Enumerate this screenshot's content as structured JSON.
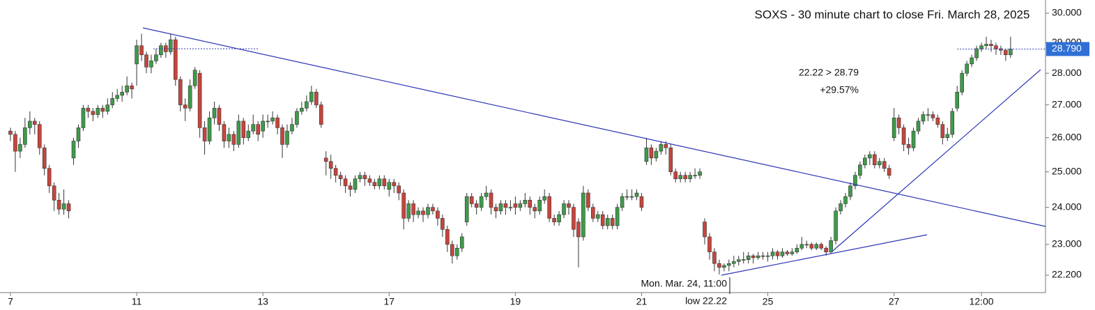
{
  "chart_data": {
    "type": "candlestick",
    "title": "SOXS - 30 minute chart to close Fri. March 28, 2025",
    "annotations": [
      "22.22 > 28.79",
      "+29.57%",
      "Mon. Mar. 24, 11:00",
      "low 22.22"
    ],
    "log_scale": true,
    "up_color": "#3f9b4a",
    "down_color": "#c6453d",
    "ylim": [
      21.76,
      30.46
    ],
    "yticks": [
      {
        "value": 22.2,
        "label": "22.200"
      },
      {
        "value": 23,
        "label": "23.000"
      },
      {
        "value": 24,
        "label": "24.000"
      },
      {
        "value": 25,
        "label": "25.000"
      },
      {
        "value": 26,
        "label": "26.000"
      },
      {
        "value": 27,
        "label": "27.000"
      },
      {
        "value": 28,
        "label": "28.000"
      },
      {
        "value": 29,
        "label": "29.000"
      },
      {
        "value": 30,
        "label": "30.000"
      }
    ],
    "xlim": [
      -2.15,
      213.2
    ],
    "xticks": [
      {
        "value": 0,
        "label": "7"
      },
      {
        "value": 26,
        "label": "11"
      },
      {
        "value": 52,
        "label": "13"
      },
      {
        "value": 78,
        "label": "17"
      },
      {
        "value": 104,
        "label": "19"
      },
      {
        "value": 130,
        "label": "21"
      },
      {
        "value": 156,
        "label": "25"
      },
      {
        "value": 182,
        "label": "27"
      },
      {
        "value": 200,
        "label": "12:00"
      }
    ],
    "last_price": {
      "value": 28.79,
      "label": "28.790"
    },
    "ohlc": [
      [
        26.2,
        26.3,
        25.9,
        26.1
      ],
      [
        26.1,
        26.2,
        25.0,
        25.6
      ],
      [
        25.6,
        26.0,
        25.4,
        25.8
      ],
      [
        25.8,
        26.6,
        25.7,
        26.3
      ],
      [
        26.3,
        26.8,
        26.1,
        26.5
      ],
      [
        26.5,
        26.6,
        26.1,
        26.4
      ],
      [
        26.4,
        26.5,
        25.5,
        25.7
      ],
      [
        25.7,
        25.8,
        24.9,
        25.1
      ],
      [
        25.1,
        25.2,
        24.4,
        24.6
      ],
      [
        24.6,
        24.7,
        23.9,
        24.2
      ],
      [
        24.2,
        24.4,
        23.8,
        23.95
      ],
      [
        23.95,
        24.5,
        23.8,
        24.1
      ],
      [
        24.1,
        24.2,
        23.7,
        23.9
      ],
      [
        25.4,
        26.0,
        25.2,
        25.9
      ],
      [
        25.9,
        26.4,
        25.7,
        26.3
      ],
      [
        26.3,
        27.0,
        26.2,
        26.9
      ],
      [
        26.9,
        27.0,
        26.6,
        26.8
      ],
      [
        26.8,
        26.9,
        26.5,
        26.7
      ],
      [
        26.7,
        27.0,
        26.6,
        26.9
      ],
      [
        26.9,
        27.0,
        26.6,
        26.8
      ],
      [
        26.8,
        27.2,
        26.7,
        27.0
      ],
      [
        27.0,
        27.4,
        26.9,
        27.2
      ],
      [
        27.2,
        27.5,
        27.1,
        27.3
      ],
      [
        27.3,
        27.6,
        27.1,
        27.4
      ],
      [
        27.4,
        27.9,
        27.3,
        27.6
      ],
      [
        27.6,
        27.7,
        27.2,
        27.5
      ],
      [
        28.3,
        29.1,
        27.6,
        28.9
      ],
      [
        28.9,
        29.3,
        28.4,
        28.6
      ],
      [
        28.6,
        28.7,
        28.0,
        28.2
      ],
      [
        28.2,
        28.6,
        28.0,
        28.4
      ],
      [
        28.4,
        28.8,
        28.3,
        28.6
      ],
      [
        28.6,
        29.0,
        28.5,
        28.9
      ],
      [
        28.9,
        29.0,
        28.5,
        28.7
      ],
      [
        28.7,
        29.3,
        28.6,
        29.1
      ],
      [
        29.1,
        29.2,
        27.6,
        27.8
      ],
      [
        27.8,
        27.9,
        26.8,
        27.0
      ],
      [
        27.0,
        27.2,
        26.5,
        26.9
      ],
      [
        26.9,
        27.8,
        26.8,
        27.6
      ],
      [
        27.6,
        28.2,
        27.5,
        28.1
      ],
      [
        28.0,
        28.1,
        26.0,
        26.3
      ],
      [
        26.3,
        26.5,
        25.5,
        25.9
      ],
      [
        25.9,
        26.8,
        25.8,
        26.6
      ],
      [
        26.6,
        27.1,
        26.4,
        26.9
      ],
      [
        26.9,
        27.0,
        26.2,
        26.4
      ],
      [
        26.4,
        26.5,
        25.7,
        25.9
      ],
      [
        25.9,
        26.3,
        25.7,
        26.1
      ],
      [
        26.1,
        26.2,
        25.6,
        25.8
      ],
      [
        25.8,
        26.7,
        25.7,
        26.5
      ],
      [
        26.5,
        26.6,
        25.8,
        26.0
      ],
      [
        26.0,
        26.4,
        25.9,
        26.2
      ],
      [
        26.2,
        26.7,
        26.1,
        26.4
      ],
      [
        26.4,
        26.5,
        25.9,
        26.1
      ],
      [
        26.2,
        26.7,
        26.0,
        26.5
      ],
      [
        26.5,
        26.7,
        26.3,
        26.5
      ],
      [
        26.5,
        26.8,
        26.4,
        26.6
      ],
      [
        26.6,
        26.7,
        26.1,
        26.3
      ],
      [
        26.3,
        26.4,
        25.4,
        25.8
      ],
      [
        25.8,
        26.4,
        25.7,
        26.2
      ],
      [
        26.2,
        26.6,
        26.1,
        26.4
      ],
      [
        26.4,
        26.9,
        26.3,
        26.8
      ],
      [
        26.8,
        27.1,
        26.7,
        26.9
      ],
      [
        26.9,
        27.3,
        26.8,
        27.1
      ],
      [
        27.1,
        27.6,
        27.0,
        27.4
      ],
      [
        27.4,
        27.5,
        26.9,
        27.0
      ],
      [
        27.0,
        27.1,
        26.3,
        26.4
      ],
      [
        25.4,
        25.6,
        24.9,
        25.3
      ],
      [
        25.3,
        25.5,
        24.8,
        25.1
      ],
      [
        25.1,
        25.2,
        24.7,
        24.9
      ],
      [
        24.9,
        25.0,
        24.6,
        24.8
      ],
      [
        24.8,
        24.9,
        24.4,
        24.6
      ],
      [
        24.6,
        24.7,
        24.3,
        24.5
      ],
      [
        24.5,
        24.9,
        24.4,
        24.8
      ],
      [
        24.8,
        25.0,
        24.7,
        24.9
      ],
      [
        24.9,
        25.0,
        24.6,
        24.8
      ],
      [
        24.8,
        24.9,
        24.6,
        24.7
      ],
      [
        24.7,
        24.8,
        24.5,
        24.6
      ],
      [
        24.6,
        24.9,
        24.5,
        24.8
      ],
      [
        24.8,
        24.9,
        24.5,
        24.6
      ],
      [
        24.5,
        24.8,
        24.3,
        24.7
      ],
      [
        24.7,
        24.8,
        24.4,
        24.6
      ],
      [
        24.6,
        24.7,
        24.2,
        24.4
      ],
      [
        24.4,
        24.5,
        23.4,
        23.7
      ],
      [
        23.7,
        24.2,
        23.6,
        24.1
      ],
      [
        24.1,
        24.2,
        23.6,
        23.8
      ],
      [
        23.8,
        24.0,
        23.7,
        23.9
      ],
      [
        23.9,
        24.0,
        23.6,
        23.8
      ],
      [
        23.8,
        24.1,
        23.7,
        24.0
      ],
      [
        24.0,
        24.1,
        23.8,
        23.9
      ],
      [
        23.9,
        24.0,
        23.5,
        23.7
      ],
      [
        23.7,
        23.8,
        23.2,
        23.4
      ],
      [
        23.4,
        23.5,
        22.8,
        23.0
      ],
      [
        23.0,
        23.1,
        22.5,
        22.7
      ],
      [
        22.7,
        23.0,
        22.6,
        22.9
      ],
      [
        22.9,
        23.3,
        22.8,
        23.2
      ],
      [
        23.6,
        24.4,
        23.5,
        24.3
      ],
      [
        24.3,
        24.4,
        24.0,
        24.1
      ],
      [
        24.1,
        24.2,
        23.8,
        24.0
      ],
      [
        24.0,
        24.4,
        23.9,
        24.3
      ],
      [
        24.3,
        24.6,
        24.2,
        24.4
      ],
      [
        24.4,
        24.5,
        23.8,
        24.0
      ],
      [
        24.0,
        24.1,
        23.7,
        23.9
      ],
      [
        23.9,
        24.2,
        23.8,
        24.1
      ],
      [
        24.1,
        24.2,
        23.8,
        24.0
      ],
      [
        24.0,
        24.2,
        23.9,
        24.0
      ],
      [
        24.1,
        24.3,
        23.8,
        24.0
      ],
      [
        24.0,
        24.2,
        23.9,
        24.1
      ],
      [
        24.1,
        24.4,
        24.0,
        24.2
      ],
      [
        24.2,
        24.3,
        23.8,
        24.0
      ],
      [
        24.0,
        24.1,
        23.7,
        23.9
      ],
      [
        23.9,
        24.3,
        23.8,
        24.2
      ],
      [
        24.2,
        24.5,
        24.1,
        24.3
      ],
      [
        24.3,
        24.4,
        23.6,
        23.7
      ],
      [
        23.7,
        23.8,
        23.5,
        23.6
      ],
      [
        23.6,
        23.9,
        23.5,
        23.8
      ],
      [
        23.8,
        24.2,
        23.7,
        24.1
      ],
      [
        24.1,
        24.2,
        23.8,
        24.0
      ],
      [
        24.0,
        24.1,
        23.2,
        23.4
      ],
      [
        23.6,
        23.7,
        22.4,
        23.2
      ],
      [
        23.2,
        24.6,
        23.1,
        24.4
      ],
      [
        24.4,
        24.5,
        23.9,
        24.0
      ],
      [
        24.0,
        24.1,
        23.6,
        23.7
      ],
      [
        23.7,
        23.9,
        23.6,
        23.8
      ],
      [
        23.8,
        23.9,
        23.4,
        23.5
      ],
      [
        23.5,
        23.8,
        23.4,
        23.7
      ],
      [
        23.7,
        23.8,
        23.4,
        23.5
      ],
      [
        23.5,
        24.1,
        23.4,
        24.0
      ],
      [
        24.0,
        24.4,
        23.9,
        24.3
      ],
      [
        24.3,
        24.5,
        24.2,
        24.3
      ],
      [
        24.3,
        24.5,
        24.2,
        24.3
      ],
      [
        24.3,
        24.5,
        24.2,
        24.4
      ],
      [
        24.3,
        24.4,
        23.9,
        24.0
      ],
      [
        25.3,
        26.0,
        25.2,
        25.7
      ],
      [
        25.7,
        25.8,
        25.2,
        25.4
      ],
      [
        25.4,
        25.7,
        25.3,
        25.6
      ],
      [
        25.6,
        25.9,
        25.5,
        25.8
      ],
      [
        25.8,
        25.9,
        25.5,
        25.7
      ],
      [
        25.7,
        25.8,
        24.9,
        25.0
      ],
      [
        25.0,
        25.1,
        24.7,
        24.8
      ],
      [
        24.8,
        25.0,
        24.7,
        24.9
      ],
      [
        24.9,
        25.0,
        24.7,
        24.8
      ],
      [
        24.8,
        25.0,
        24.7,
        24.9
      ],
      [
        24.9,
        25.1,
        24.8,
        24.9
      ],
      [
        24.9,
        25.1,
        24.8,
        25.0
      ],
      [
        23.6,
        23.7,
        23.0,
        23.2
      ],
      [
        23.2,
        23.3,
        22.6,
        22.8
      ],
      [
        22.8,
        22.9,
        22.3,
        22.5
      ],
      [
        22.5,
        22.6,
        22.22,
        22.4
      ],
      [
        22.4,
        22.5,
        22.3,
        22.45
      ],
      [
        22.45,
        22.6,
        22.3,
        22.5
      ],
      [
        22.5,
        22.7,
        22.4,
        22.55
      ],
      [
        22.55,
        22.7,
        22.45,
        22.6
      ],
      [
        22.6,
        22.8,
        22.5,
        22.6
      ],
      [
        22.6,
        22.8,
        22.5,
        22.7
      ],
      [
        22.7,
        22.75,
        22.5,
        22.65
      ],
      [
        22.65,
        22.8,
        22.6,
        22.7
      ],
      [
        22.7,
        22.8,
        22.6,
        22.7
      ],
      [
        22.7,
        22.8,
        22.55,
        22.7
      ],
      [
        22.7,
        22.9,
        22.6,
        22.8
      ],
      [
        22.8,
        22.85,
        22.6,
        22.7
      ],
      [
        22.7,
        22.9,
        22.65,
        22.8
      ],
      [
        22.8,
        22.85,
        22.7,
        22.75
      ],
      [
        22.75,
        22.9,
        22.7,
        22.8
      ],
      [
        22.8,
        23.0,
        22.75,
        22.9
      ],
      [
        22.9,
        23.2,
        22.85,
        23.0
      ],
      [
        23.0,
        23.1,
        22.9,
        23.0
      ],
      [
        23.0,
        23.05,
        22.85,
        22.9
      ],
      [
        22.9,
        23.05,
        22.85,
        23.0
      ],
      [
        23.0,
        23.05,
        22.85,
        22.9
      ],
      [
        22.9,
        22.95,
        22.7,
        22.8
      ],
      [
        22.8,
        23.2,
        22.75,
        23.1
      ],
      [
        23.1,
        24.0,
        23.0,
        23.9
      ],
      [
        23.9,
        24.2,
        23.8,
        24.1
      ],
      [
        24.1,
        24.4,
        24.0,
        24.3
      ],
      [
        24.3,
        24.7,
        24.2,
        24.6
      ],
      [
        24.6,
        25.0,
        24.5,
        24.9
      ],
      [
        24.9,
        25.3,
        24.8,
        25.2
      ],
      [
        25.2,
        25.5,
        25.1,
        25.4
      ],
      [
        25.4,
        25.6,
        25.2,
        25.5
      ],
      [
        25.5,
        25.6,
        25.1,
        25.2
      ],
      [
        25.2,
        25.4,
        25.1,
        25.3
      ],
      [
        25.3,
        25.4,
        25.0,
        25.1
      ],
      [
        25.1,
        25.2,
        24.8,
        24.9
      ],
      [
        26.0,
        26.9,
        25.9,
        26.6
      ],
      [
        26.6,
        26.7,
        26.1,
        26.3
      ],
      [
        26.3,
        26.4,
        25.6,
        25.8
      ],
      [
        25.8,
        26.0,
        25.5,
        25.7
      ],
      [
        25.7,
        26.3,
        25.6,
        26.2
      ],
      [
        26.2,
        26.6,
        26.1,
        26.5
      ],
      [
        26.5,
        26.8,
        26.4,
        26.7
      ],
      [
        26.7,
        26.9,
        26.5,
        26.7
      ],
      [
        26.7,
        26.8,
        26.5,
        26.6
      ],
      [
        26.6,
        26.7,
        26.3,
        26.4
      ],
      [
        26.4,
        26.5,
        25.8,
        26.0
      ],
      [
        26.0,
        26.3,
        25.9,
        26.1
      ],
      [
        26.1,
        26.9,
        26.0,
        26.8
      ],
      [
        26.9,
        27.6,
        26.8,
        27.4
      ],
      [
        27.4,
        28.1,
        27.3,
        28.0
      ],
      [
        28.0,
        28.4,
        27.9,
        28.3
      ],
      [
        28.3,
        28.6,
        28.2,
        28.5
      ],
      [
        28.5,
        28.9,
        28.4,
        28.8
      ],
      [
        28.8,
        29.0,
        28.7,
        28.9
      ],
      [
        28.9,
        29.2,
        28.8,
        28.95
      ],
      [
        28.95,
        29.1,
        28.7,
        28.9
      ],
      [
        28.9,
        29.0,
        28.6,
        28.8
      ],
      [
        28.8,
        28.9,
        28.6,
        28.75
      ],
      [
        28.75,
        28.8,
        28.4,
        28.6
      ],
      [
        28.6,
        29.2,
        28.5,
        28.79
      ]
    ]
  }
}
